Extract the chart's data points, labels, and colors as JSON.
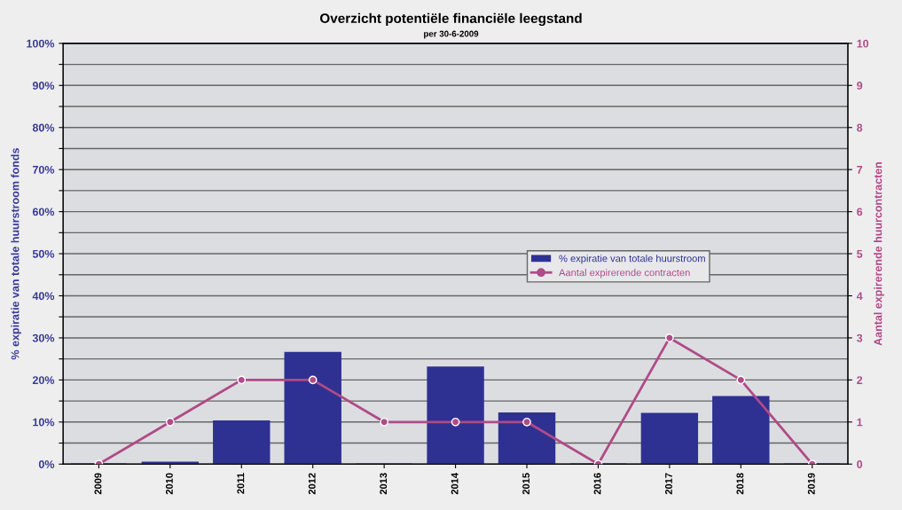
{
  "chart_data": {
    "type": "bar",
    "title": "Overzicht potentiële financiële leegstand",
    "subtitle": "per 30-6-2009",
    "ylabel": "% expiratie van totale huurstroom fonds",
    "y2label": "Aantal expirerende huurcontracten",
    "categories": [
      "2009",
      "2010",
      "2011",
      "2012",
      "2013",
      "2014",
      "2015",
      "2016",
      "2017",
      "2018",
      "2019"
    ],
    "series": [
      {
        "name": "% expiratie van totale huurstroom",
        "color": "#2e3192",
        "values": [
          0,
          0.4,
          10.2,
          26.5,
          0,
          23,
          12.1,
          0,
          12,
          16,
          0
        ]
      },
      {
        "name": "Aantal expirerende contracten",
        "type": "line",
        "axis": "y2",
        "color": "#b04a88",
        "marker": "circle",
        "values": [
          0,
          1,
          2,
          2,
          1,
          1,
          1,
          0,
          3,
          2,
          0
        ]
      }
    ],
    "ylim": [
      0,
      100
    ],
    "yticks": [
      {
        "value": 0,
        "label": "0%"
      },
      {
        "value": 5,
        "label": null
      },
      {
        "value": 10,
        "label": "10%"
      },
      {
        "value": 15,
        "label": null
      },
      {
        "value": 20,
        "label": "20%"
      },
      {
        "value": 25,
        "label": null
      },
      {
        "value": 30,
        "label": "30%"
      },
      {
        "value": 35,
        "label": null
      },
      {
        "value": 40,
        "label": "40%"
      },
      {
        "value": 45,
        "label": null
      },
      {
        "value": 50,
        "label": "50%"
      },
      {
        "value": 55,
        "label": null
      },
      {
        "value": 60,
        "label": "60%"
      },
      {
        "value": 65,
        "label": null
      },
      {
        "value": 70,
        "label": "70%"
      },
      {
        "value": 75,
        "label": null
      },
      {
        "value": 80,
        "label": "80%"
      },
      {
        "value": 85,
        "label": null
      },
      {
        "value": 90,
        "label": "90%"
      },
      {
        "value": 95,
        "label": null
      },
      {
        "value": 100,
        "label": "100%"
      }
    ],
    "y2lim": [
      0,
      10
    ],
    "y2ticks": [
      0,
      1,
      2,
      3,
      4,
      5,
      6,
      7,
      8,
      9,
      10
    ],
    "grid": "y",
    "legend": "right"
  }
}
